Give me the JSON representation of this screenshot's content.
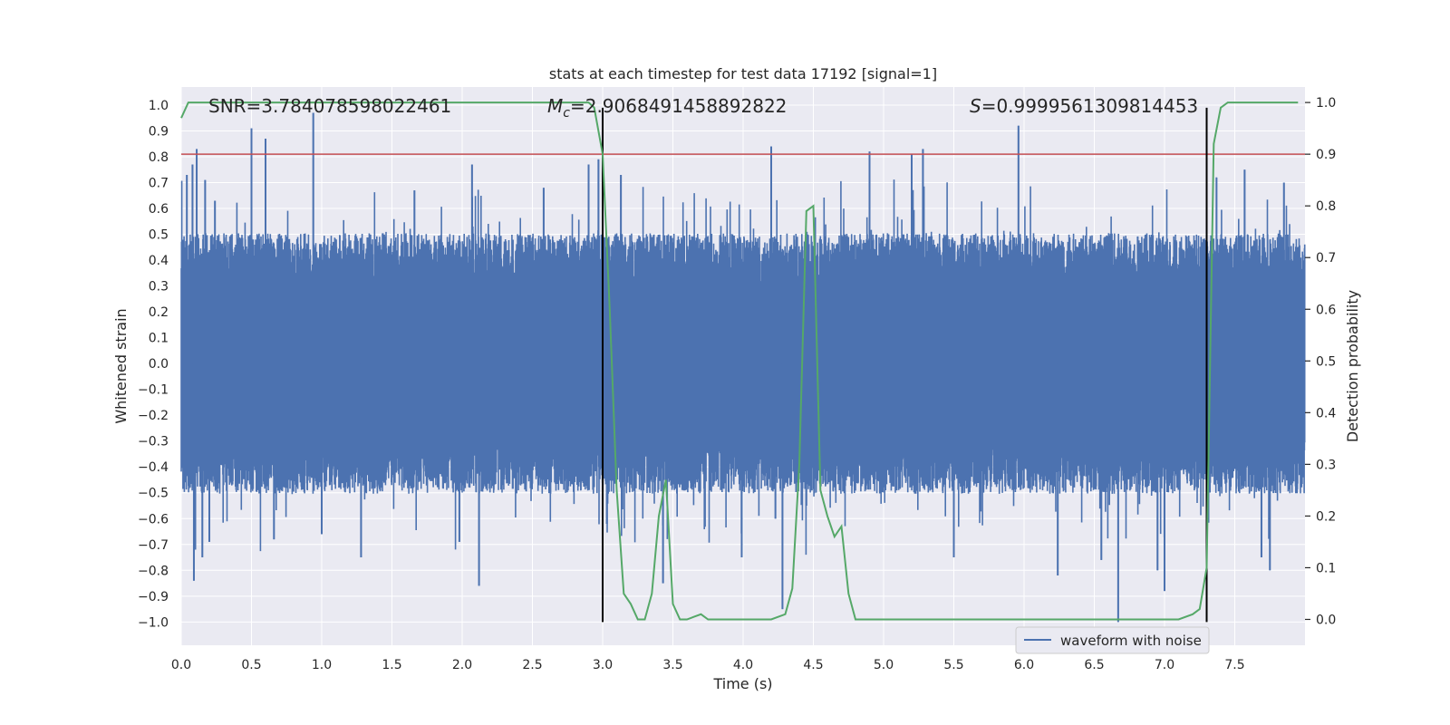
{
  "chart_data": {
    "type": "line",
    "title": "stats at each timestep for test data 17192 [signal=1]",
    "xlabel": "Time (s)",
    "ylabel": "Whitened strain",
    "ylabel_right": "Detection probability",
    "xlim": [
      0.0,
      8.0
    ],
    "ylim": [
      -1.09,
      1.07
    ],
    "ylim_right": [
      -0.05,
      1.03
    ],
    "x_ticks": [
      "0.0",
      "0.5",
      "1.0",
      "1.5",
      "2.0",
      "2.5",
      "3.0",
      "3.5",
      "4.0",
      "4.5",
      "5.0",
      "5.5",
      "6.0",
      "6.5",
      "7.0",
      "7.5"
    ],
    "y_ticks": [
      "1.0",
      "0.9",
      "0.8",
      "0.7",
      "0.6",
      "0.5",
      "0.4",
      "0.3",
      "0.2",
      "0.1",
      "0.0",
      "-0.1",
      "-0.2",
      "-0.3",
      "-0.4",
      "-0.5",
      "-0.6",
      "-0.7",
      "-0.8",
      "-0.9",
      "-1.0"
    ],
    "y_right_ticks": [
      "1.0",
      "0.9",
      "0.8",
      "0.7",
      "0.6",
      "0.5",
      "0.4",
      "0.3",
      "0.2",
      "0.1",
      "0.0"
    ],
    "annotations": {
      "snr": "SNR=3.784078598022461",
      "mc_symbol": "M",
      "mc_sub": "c",
      "mc_value": "=2.9068491458892822",
      "s_symbol": "S",
      "s_value": "=0.9999561309814453"
    },
    "threshold_right": 0.9,
    "vertical_lines_x": [
      3.0,
      7.3
    ],
    "vertical_lines_yrange": [
      -1.0,
      0.99
    ],
    "legend": {
      "label": "waveform with noise",
      "position": "lower-right"
    },
    "waveform": {
      "name": "waveform with noise",
      "dt": 0.002,
      "core_amplitude": 0.42,
      "peaks": [
        {
          "x": 0.04,
          "y": 0.73
        },
        {
          "x": 0.08,
          "y": 0.77
        },
        {
          "x": 0.09,
          "y": -0.84
        },
        {
          "x": 0.1,
          "y": -0.72
        },
        {
          "x": 0.11,
          "y": 0.83
        },
        {
          "x": 0.15,
          "y": -0.75
        },
        {
          "x": 0.17,
          "y": 0.71
        },
        {
          "x": 0.2,
          "y": -0.69
        },
        {
          "x": 0.24,
          "y": 0.63
        },
        {
          "x": 0.5,
          "y": 0.91
        },
        {
          "x": 0.6,
          "y": 0.87
        },
        {
          "x": 0.66,
          "y": -0.68
        },
        {
          "x": 0.94,
          "y": 0.97
        },
        {
          "x": 1.0,
          "y": -0.66
        },
        {
          "x": 1.28,
          "y": -0.75
        },
        {
          "x": 1.66,
          "y": 0.67
        },
        {
          "x": 1.98,
          "y": -0.69
        },
        {
          "x": 2.07,
          "y": 0.77
        },
        {
          "x": 2.12,
          "y": -0.86
        },
        {
          "x": 2.58,
          "y": 0.68
        },
        {
          "x": 2.9,
          "y": 0.77
        },
        {
          "x": 2.97,
          "y": 0.79
        },
        {
          "x": 3.0,
          "y": 0.72
        },
        {
          "x": 3.03,
          "y": -0.62
        },
        {
          "x": 3.13,
          "y": 0.73
        },
        {
          "x": 3.43,
          "y": -0.85
        },
        {
          "x": 3.99,
          "y": -0.75
        },
        {
          "x": 4.2,
          "y": 0.84
        },
        {
          "x": 4.23,
          "y": -0.6
        },
        {
          "x": 4.28,
          "y": -0.95
        },
        {
          "x": 4.45,
          "y": -0.55
        },
        {
          "x": 4.9,
          "y": 0.82
        },
        {
          "x": 5.2,
          "y": 0.81
        },
        {
          "x": 5.28,
          "y": 0.83
        },
        {
          "x": 5.5,
          "y": -0.75
        },
        {
          "x": 5.96,
          "y": 0.92
        },
        {
          "x": 6.24,
          "y": -0.82
        },
        {
          "x": 6.55,
          "y": -0.76
        },
        {
          "x": 6.67,
          "y": -1.0
        },
        {
          "x": 6.95,
          "y": -0.8
        },
        {
          "x": 7.0,
          "y": -0.88
        },
        {
          "x": 7.37,
          "y": 0.72
        },
        {
          "x": 7.57,
          "y": 0.75
        },
        {
          "x": 7.69,
          "y": -0.75
        },
        {
          "x": 7.75,
          "y": -0.8
        },
        {
          "x": 7.85,
          "y": 0.7
        }
      ]
    },
    "detection_probability": {
      "x": [
        0.0,
        0.05,
        0.1,
        0.3,
        0.5,
        1.0,
        1.5,
        2.0,
        2.5,
        2.9,
        2.94,
        2.98,
        3.0,
        3.05,
        3.1,
        3.15,
        3.2,
        3.25,
        3.3,
        3.35,
        3.4,
        3.45,
        3.5,
        3.55,
        3.6,
        3.65,
        3.7,
        3.75,
        3.8,
        3.9,
        4.0,
        4.1,
        4.2,
        4.3,
        4.35,
        4.4,
        4.45,
        4.5,
        4.55,
        4.6,
        4.65,
        4.7,
        4.75,
        4.8,
        4.9,
        5.0,
        5.5,
        6.0,
        6.5,
        7.0,
        7.1,
        7.2,
        7.25,
        7.3,
        7.35,
        7.4,
        7.45,
        7.5,
        7.6,
        7.75,
        7.95
      ],
      "y": [
        0.97,
        1.0,
        1.0,
        1.0,
        1.0,
        1.0,
        1.0,
        1.0,
        1.0,
        1.0,
        0.99,
        0.93,
        0.9,
        0.6,
        0.25,
        0.05,
        0.03,
        0.0,
        0.0,
        0.05,
        0.2,
        0.27,
        0.03,
        0.0,
        0.0,
        0.005,
        0.01,
        0.0,
        0.0,
        0.0,
        0.0,
        0.0,
        0.0,
        0.01,
        0.06,
        0.3,
        0.79,
        0.8,
        0.25,
        0.2,
        0.16,
        0.18,
        0.05,
        0.0,
        0.0,
        0.0,
        0.0,
        0.0,
        0.0,
        0.0,
        0.0,
        0.01,
        0.02,
        0.1,
        0.92,
        0.99,
        1.0,
        1.0,
        1.0,
        1.0,
        1.0
      ]
    },
    "colors": {
      "waveform": "#4c72b0",
      "probability": "#55a868",
      "threshold": "#c44e52",
      "vlines": "#000000",
      "axes_bg": "#eaeaf2",
      "grid": "#ffffff"
    }
  }
}
